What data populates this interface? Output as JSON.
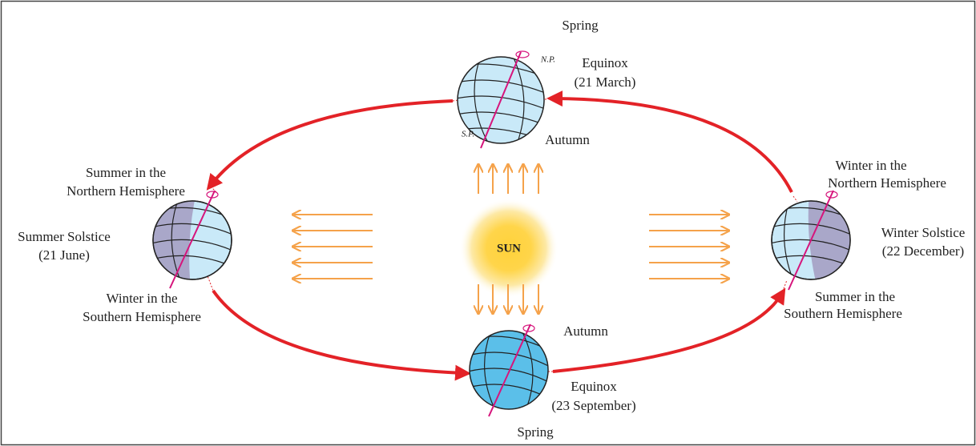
{
  "sun": {
    "label": "SUN"
  },
  "march": {
    "above": "Spring",
    "north_pole": "N.P.",
    "title": "Equinox",
    "date": "(21 March)",
    "south_pole": "S.P.",
    "below": "Autumn"
  },
  "june": {
    "north_line1": "Summer in the",
    "north_line2": "Northern Hemisphere",
    "title": "Summer Solstice",
    "date": "(21 June)",
    "south_line1": "Winter in the",
    "south_line2": "Southern Hemisphere"
  },
  "september": {
    "above": "Autumn",
    "title": "Equinox",
    "date": "(23 September)",
    "below": "Spring"
  },
  "december": {
    "north_line1": "Winter in the",
    "north_line2": "Northern Hemisphere",
    "title": "Winter Solstice",
    "date": "(22 December)",
    "south_line1": "Summer in the",
    "south_line2": "Southern Hemisphere"
  }
}
